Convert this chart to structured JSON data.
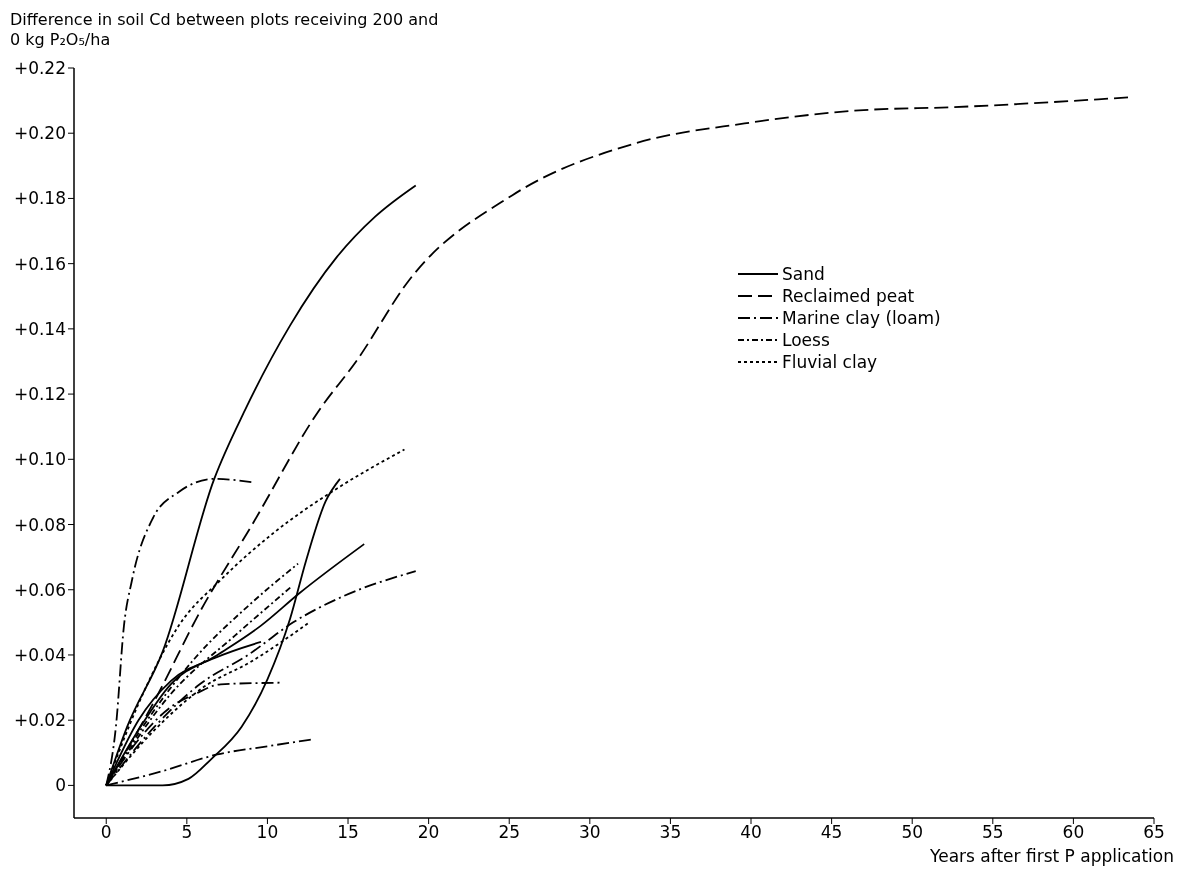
{
  "chart_data": {
    "type": "line",
    "ylabel": "Difference in soil Cd between plots receiving 200 and 0 kg P₂O₅/ha",
    "xlabel": "Years after first P application",
    "xlim": [
      -2,
      65
    ],
    "xticks": [
      0,
      5,
      10,
      15,
      20,
      25,
      30,
      35,
      40,
      45,
      50,
      55,
      60,
      65
    ],
    "ylim": [
      -0.01,
      0.22
    ],
    "yticks": [
      {
        "value": 0,
        "label": "0"
      },
      {
        "value": 0.02,
        "label": "+0.02"
      },
      {
        "value": 0.04,
        "label": "+0.04"
      },
      {
        "value": 0.06,
        "label": "+0.06"
      },
      {
        "value": 0.08,
        "label": "+0.08"
      },
      {
        "value": 0.1,
        "label": "+0.10"
      },
      {
        "value": 0.12,
        "label": "+0.12"
      },
      {
        "value": 0.14,
        "label": "+0.14"
      },
      {
        "value": 0.16,
        "label": "+0.16"
      },
      {
        "value": 0.18,
        "label": "+0.18"
      },
      {
        "value": 0.2,
        "label": "+0.20"
      },
      {
        "value": 0.22,
        "label": "+0.22"
      }
    ],
    "legend": "right",
    "marker": "none",
    "series": [
      {
        "name": "Sand",
        "color": "#000000",
        "line_style": "solid",
        "x": [
          0,
          1.3,
          3.5,
          6.7,
          8.6,
          11.4,
          14.3,
          16.7,
          19.2
        ],
        "values": [
          0,
          0.018,
          0.041,
          0.094,
          0.115,
          0.141,
          0.162,
          0.1745,
          0.184
        ]
      },
      {
        "name": "Reclaimed peat",
        "color": "#000000",
        "line_style": "dashed",
        "x": [
          0,
          3,
          5.9,
          9,
          13.2,
          15.5,
          18.8,
          25.2,
          32.9,
          39.6,
          46.7,
          52.6,
          63.5
        ],
        "values": [
          0,
          0.026,
          0.054,
          0.0795,
          0.115,
          0.13,
          0.155,
          0.181,
          0.197,
          0.203,
          0.207,
          0.208,
          0.211
        ]
      },
      {
        "name": "Marine clay (loam)",
        "color": "#000000",
        "line_style": "dashdot",
        "x": [
          0,
          0.6,
          1.1,
          1.6,
          2.9,
          4.5,
          6.7,
          9
        ],
        "values": [
          0,
          0.018,
          0.049,
          0.063,
          0.082,
          0.09,
          0.094,
          0.093
        ]
      },
      {
        "name": "Loess",
        "color": "#000000",
        "line_style": "dashdotdot",
        "x": [
          0,
          2,
          5.5,
          8.8,
          11.9
        ],
        "values": [
          0,
          0.016,
          0.039,
          0.055,
          0.068
        ]
      },
      {
        "name": "Fluvial clay",
        "color": "#000000",
        "line_style": "dotted",
        "x": [
          0,
          2,
          4.5,
          7.1,
          10.4,
          14.3,
          18.5
        ],
        "values": [
          0,
          0.025,
          0.049,
          0.063,
          0.0775,
          0.091,
          0.103
        ]
      },
      {
        "color": "#000000",
        "line_style": "solid",
        "x": [
          0,
          2.5,
          3.5,
          5.1,
          6.5,
          8.4,
          10,
          11.4,
          12.4,
          13.6,
          14.5
        ],
        "values": [
          0,
          0,
          0,
          0.002,
          0.008,
          0.018,
          0.0325,
          0.051,
          0.069,
          0.087,
          0.094
        ]
      },
      {
        "color": "#000000",
        "line_style": "solid",
        "x": [
          0,
          2,
          4,
          6.9,
          9.6,
          12,
          16
        ],
        "values": [
          0,
          0.017,
          0.031,
          0.04,
          0.049,
          0.059,
          0.074
        ]
      },
      {
        "color": "#000000",
        "line_style": "solid",
        "x": [
          0,
          2,
          4,
          6.7,
          9.6
        ],
        "values": [
          0,
          0.02,
          0.032,
          0.039,
          0.044
        ]
      },
      {
        "color": "#000000",
        "line_style": "dashdot",
        "x": [
          0,
          3.5,
          6.9,
          10,
          12.8
        ],
        "values": [
          0,
          0.0044,
          0.0095,
          0.012,
          0.0141
        ]
      },
      {
        "color": "#000000",
        "line_style": "dashdot",
        "x": [
          0,
          3,
          5.8,
          8.8,
          11.6,
          14.7,
          19.2
        ],
        "values": [
          0,
          0.018,
          0.031,
          0.04,
          0.05,
          0.058,
          0.0657
        ]
      },
      {
        "color": "#000000",
        "line_style": "dashdot",
        "x": [
          0,
          2,
          4,
          5.5,
          7.1,
          10.9
        ],
        "values": [
          0,
          0.014,
          0.024,
          0.028,
          0.031,
          0.0315
        ]
      },
      {
        "color": "#000000",
        "line_style": "dashdotdot",
        "x": [
          0,
          4,
          8,
          11.5
        ],
        "values": [
          0,
          0.028,
          0.046,
          0.061
        ]
      },
      {
        "color": "#000000",
        "line_style": "dotted",
        "x": [
          0,
          3,
          6,
          9,
          12.6
        ],
        "values": [
          0,
          0.017,
          0.03,
          0.038,
          0.05
        ]
      }
    ]
  }
}
